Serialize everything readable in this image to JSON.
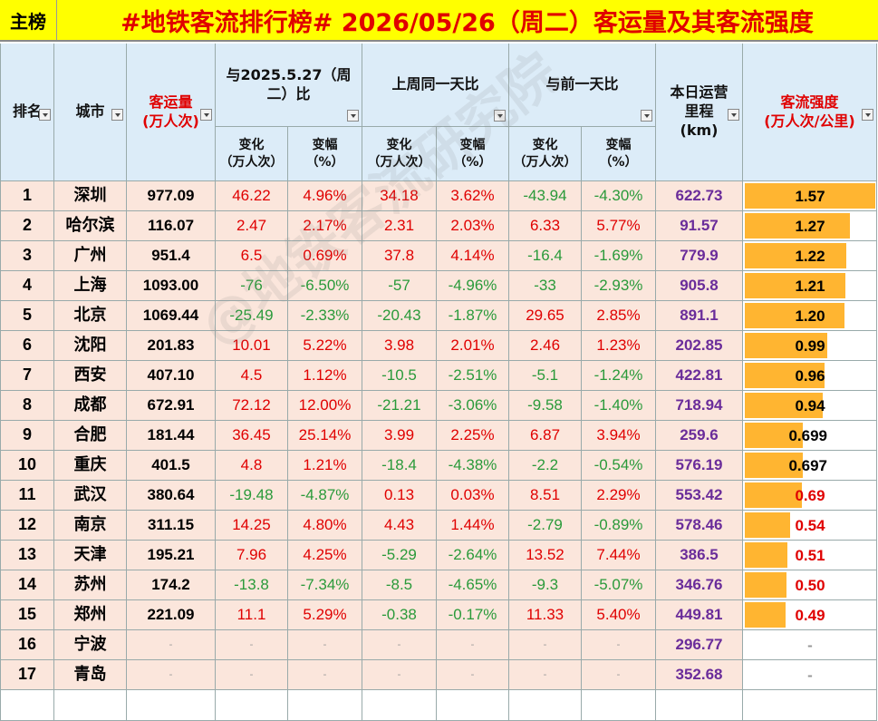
{
  "header": {
    "tag": "主榜",
    "title": "#地铁客流排行榜# 2026/05/26（周二）客运量及其客流强度"
  },
  "table": {
    "columns": [
      "排名",
      "城市",
      "客运量\n(万人次)",
      "与2025.5.27（周\n二）比",
      "上周同一天比",
      "与前一天比",
      "本日运营\n里程\n(km)",
      "客流强度\n(万人次/公里)"
    ],
    "subcolumns": [
      "变化\n（万人次）",
      "变幅\n（%）",
      "变化\n（万人次）",
      "变幅\n（%）",
      "变化\n（万人次）",
      "变幅\n（%）"
    ],
    "rows": [
      [
        "1",
        "深圳",
        "977.09",
        "46.22",
        "4.96%",
        "34.18",
        "3.62%",
        "-43.94",
        "-4.30%",
        "622.73",
        "1.57"
      ],
      [
        "2",
        "哈尔滨",
        "116.07",
        "2.47",
        "2.17%",
        "2.31",
        "2.03%",
        "6.33",
        "5.77%",
        "91.57",
        "1.27"
      ],
      [
        "3",
        "广州",
        "951.4",
        "6.5",
        "0.69%",
        "37.8",
        "4.14%",
        "-16.4",
        "-1.69%",
        "779.9",
        "1.22"
      ],
      [
        "4",
        "上海",
        "1093.00",
        "-76",
        "-6.50%",
        "-57",
        "-4.96%",
        "-33",
        "-2.93%",
        "905.8",
        "1.21"
      ],
      [
        "5",
        "北京",
        "1069.44",
        "-25.49",
        "-2.33%",
        "-20.43",
        "-1.87%",
        "29.65",
        "2.85%",
        "891.1",
        "1.20"
      ],
      [
        "6",
        "沈阳",
        "201.83",
        "10.01",
        "5.22%",
        "3.98",
        "2.01%",
        "2.46",
        "1.23%",
        "202.85",
        "0.99"
      ],
      [
        "7",
        "西安",
        "407.10",
        "4.5",
        "1.12%",
        "-10.5",
        "-2.51%",
        "-5.1",
        "-1.24%",
        "422.81",
        "0.96"
      ],
      [
        "8",
        "成都",
        "672.91",
        "72.12",
        "12.00%",
        "-21.21",
        "-3.06%",
        "-9.58",
        "-1.40%",
        "718.94",
        "0.94"
      ],
      [
        "9",
        "合肥",
        "181.44",
        "36.45",
        "25.14%",
        "3.99",
        "2.25%",
        "6.87",
        "3.94%",
        "259.6",
        "0.699"
      ],
      [
        "10",
        "重庆",
        "401.5",
        "4.8",
        "1.21%",
        "-18.4",
        "-4.38%",
        "-2.2",
        "-0.54%",
        "576.19",
        "0.697"
      ],
      [
        "11",
        "武汉",
        "380.64",
        "-19.48",
        "-4.87%",
        "0.13",
        "0.03%",
        "8.51",
        "2.29%",
        "553.42",
        "0.69"
      ],
      [
        "12",
        "南京",
        "311.15",
        "14.25",
        "4.80%",
        "4.43",
        "1.44%",
        "-2.79",
        "-0.89%",
        "578.46",
        "0.54"
      ],
      [
        "13",
        "天津",
        "195.21",
        "7.96",
        "4.25%",
        "-5.29",
        "-2.64%",
        "13.52",
        "7.44%",
        "386.5",
        "0.51"
      ],
      [
        "14",
        "苏州",
        "174.2",
        "-13.8",
        "-7.34%",
        "-8.5",
        "-4.65%",
        "-9.3",
        "-5.07%",
        "346.76",
        "0.50"
      ],
      [
        "15",
        "郑州",
        "221.09",
        "11.1",
        "5.29%",
        "-0.38",
        "-0.17%",
        "11.33",
        "5.40%",
        "449.81",
        "0.49"
      ],
      [
        "16",
        "宁波",
        "-",
        "-",
        "-",
        "-",
        "-",
        "-",
        "-",
        "296.77",
        "-"
      ],
      [
        "17",
        "青岛",
        "-",
        "-",
        "-",
        "-",
        "-",
        "-",
        "-",
        "352.68",
        "-"
      ]
    ]
  },
  "watermark": "@地铁客流研究院"
}
